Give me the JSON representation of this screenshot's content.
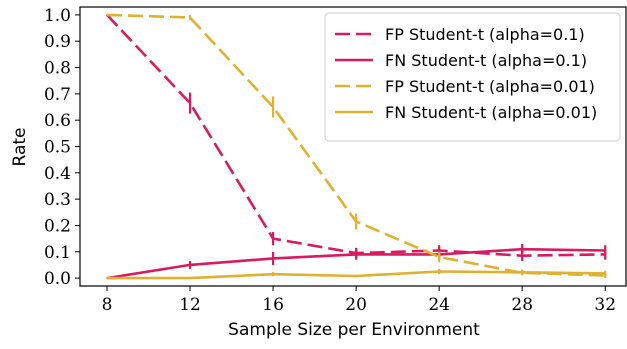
{
  "chart_data": {
    "type": "line",
    "title": "",
    "xlabel": "Sample Size per Environment",
    "ylabel": "Rate",
    "x": [
      8,
      12,
      16,
      20,
      24,
      28,
      32
    ],
    "xticks": [
      "8",
      "12",
      "16",
      "20",
      "24",
      "28",
      "32"
    ],
    "yticks": [
      "0.0",
      "0.1",
      "0.2",
      "0.3",
      "0.4",
      "0.5",
      "0.6",
      "0.7",
      "0.8",
      "0.9",
      "1.0"
    ],
    "xlim": [
      6.7,
      33
    ],
    "ylim": [
      -0.03,
      1.03
    ],
    "legend_position": "top-right",
    "series": [
      {
        "name": "FP Student-t (alpha=0.1)",
        "color": "#d81b60",
        "dash": "dashed",
        "values": [
          1.0,
          0.665,
          0.15,
          0.095,
          0.105,
          0.085,
          0.09
        ],
        "err": [
          0,
          0.04,
          0.025,
          0.02,
          0.02,
          0.02,
          0.02
        ]
      },
      {
        "name": "FN Student-t (alpha=0.1)",
        "color": "#d81b60",
        "dash": "solid",
        "values": [
          0.0,
          0.05,
          0.075,
          0.09,
          0.09,
          0.11,
          0.105
        ],
        "err": [
          0,
          0.015,
          0.025,
          0.02,
          0.02,
          0.02,
          0.02
        ]
      },
      {
        "name": "FP Student-t (alpha=0.01)",
        "color": "#e0b030",
        "dash": "dashed",
        "values": [
          1.0,
          0.99,
          0.65,
          0.215,
          0.08,
          0.02,
          0.01
        ],
        "err": [
          0,
          0.01,
          0.04,
          0.03,
          0.02,
          0.01,
          0.01
        ]
      },
      {
        "name": "FN Student-t (alpha=0.01)",
        "color": "#e0b030",
        "dash": "solid",
        "values": [
          0.0,
          0.0,
          0.015,
          0.008,
          0.025,
          0.022,
          0.018
        ],
        "err": [
          0,
          0,
          0.008,
          0.005,
          0.01,
          0.01,
          0.01
        ]
      }
    ]
  }
}
